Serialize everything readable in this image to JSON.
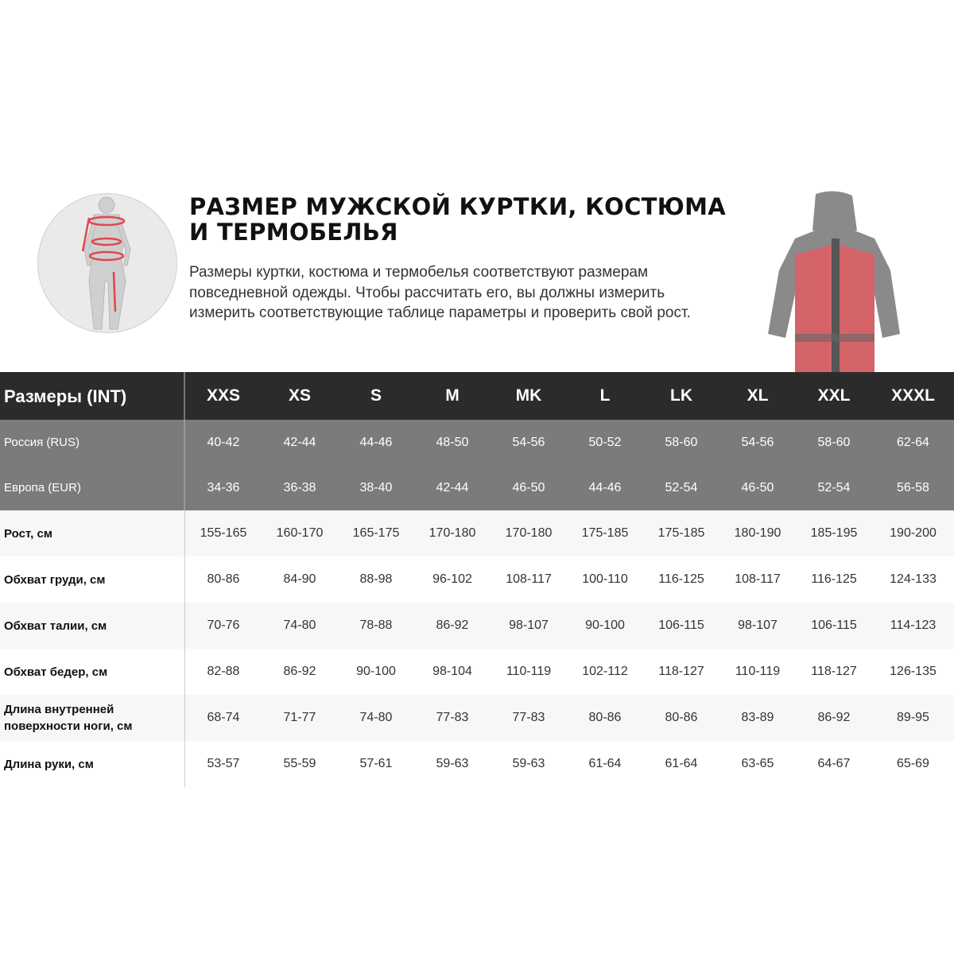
{
  "title": "РАЗМЕР МУЖСКОЙ КУРТКИ, КОСТЮМА И ТЕРМОБЕЛЬЯ",
  "description": "Размеры куртки, костюма и термобелья соответствуют размерам повседневной одежды. Чтобы рассчитать его, вы должны измерить измерить соответствующие таблице параметры и проверить свой рост.",
  "colors": {
    "header": "#2b2b2b",
    "region_rows": "#7b7b7b",
    "accent": "#e0474c"
  },
  "table": {
    "header_label": "Размеры (INT)",
    "sizes": [
      "XXS",
      "XS",
      "S",
      "M",
      "MK",
      "L",
      "LK",
      "XL",
      "XXL",
      "XXXL"
    ],
    "rows": [
      {
        "label": "Россия (RUS)",
        "values": [
          "40-42",
          "42-44",
          "44-46",
          "48-50",
          "54-56",
          "50-52",
          "58-60",
          "54-56",
          "58-60",
          "62-64"
        ]
      },
      {
        "label": "Европа (EUR)",
        "values": [
          "34-36",
          "36-38",
          "38-40",
          "42-44",
          "46-50",
          "44-46",
          "52-54",
          "46-50",
          "52-54",
          "56-58"
        ]
      },
      {
        "label": "Рост, см",
        "values": [
          "155-165",
          "160-170",
          "165-175",
          "170-180",
          "170-180",
          "175-185",
          "175-185",
          "180-190",
          "185-195",
          "190-200"
        ]
      },
      {
        "label": "Обхват груди, см",
        "values": [
          "80-86",
          "84-90",
          "88-98",
          "96-102",
          "108-117",
          "100-110",
          "116-125",
          "108-117",
          "116-125",
          "124-133"
        ]
      },
      {
        "label": "Обхват талии, см",
        "values": [
          "70-76",
          "74-80",
          "78-88",
          "86-92",
          "98-107",
          "90-100",
          "106-115",
          "98-107",
          "106-115",
          "114-123"
        ]
      },
      {
        "label": "Обхват бедер, см",
        "values": [
          "82-88",
          "86-92",
          "90-100",
          "98-104",
          "110-119",
          "102-112",
          "118-127",
          "110-119",
          "118-127",
          "126-135"
        ]
      },
      {
        "label": "Длина внутренней поверхности ноги, см",
        "values": [
          "68-74",
          "71-77",
          "74-80",
          "77-83",
          "77-83",
          "80-86",
          "80-86",
          "83-89",
          "86-92",
          "89-95"
        ]
      },
      {
        "label": "Длина руки, см",
        "values": [
          "53-57",
          "55-59",
          "57-61",
          "59-63",
          "59-63",
          "61-64",
          "61-64",
          "63-65",
          "64-67",
          "65-69"
        ]
      }
    ]
  }
}
